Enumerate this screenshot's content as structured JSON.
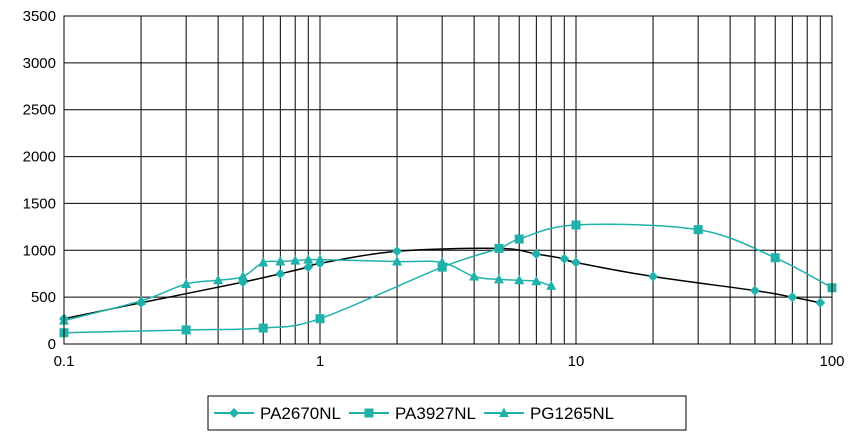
{
  "chart_data": {
    "type": "line",
    "x_scale": "log",
    "xlim": [
      0.1,
      100
    ],
    "ylim": [
      0,
      3500
    ],
    "x_ticks": [
      "0.1",
      "1",
      "10",
      "100"
    ],
    "y_ticks": [
      "0",
      "500",
      "1000",
      "1500",
      "2000",
      "2500",
      "3000",
      "3500"
    ],
    "grid": true,
    "legend_position": "bottom",
    "series": [
      {
        "name": "PA2670NL",
        "line_color": "#000000",
        "marker_color": "#20b2aa",
        "marker": "diamond",
        "points": [
          [
            0.1,
            270
          ],
          [
            0.2,
            440
          ],
          [
            0.5,
            660
          ],
          [
            0.7,
            750
          ],
          [
            0.9,
            820
          ],
          [
            1,
            860
          ],
          [
            2,
            990
          ],
          [
            5,
            1020
          ],
          [
            7,
            960
          ],
          [
            9,
            910
          ],
          [
            10,
            870
          ],
          [
            20,
            720
          ],
          [
            50,
            570
          ],
          [
            70,
            500
          ],
          [
            90,
            440
          ]
        ]
      },
      {
        "name": "PA3927NL",
        "line_color": "#20b2aa",
        "marker_color": "#20b2aa",
        "marker": "square",
        "points": [
          [
            0.1,
            120
          ],
          [
            0.3,
            150
          ],
          [
            0.6,
            170
          ],
          [
            1,
            270
          ],
          [
            3,
            820
          ],
          [
            5,
            1020
          ],
          [
            6,
            1120
          ],
          [
            10,
            1270
          ],
          [
            30,
            1220
          ],
          [
            60,
            920
          ],
          [
            100,
            600
          ]
        ]
      },
      {
        "name": "PG1265NL",
        "line_color": "#20b2aa",
        "marker_color": "#20b2aa",
        "marker": "triangle",
        "points": [
          [
            0.1,
            250
          ],
          [
            0.2,
            460
          ],
          [
            0.3,
            640
          ],
          [
            0.4,
            680
          ],
          [
            0.5,
            720
          ],
          [
            0.6,
            870
          ],
          [
            0.7,
            880
          ],
          [
            0.8,
            890
          ],
          [
            0.9,
            900
          ],
          [
            1,
            900
          ],
          [
            2,
            880
          ],
          [
            3,
            870
          ],
          [
            4,
            720
          ],
          [
            5,
            690
          ],
          [
            6,
            680
          ],
          [
            7,
            670
          ],
          [
            8,
            620
          ]
        ]
      }
    ]
  }
}
